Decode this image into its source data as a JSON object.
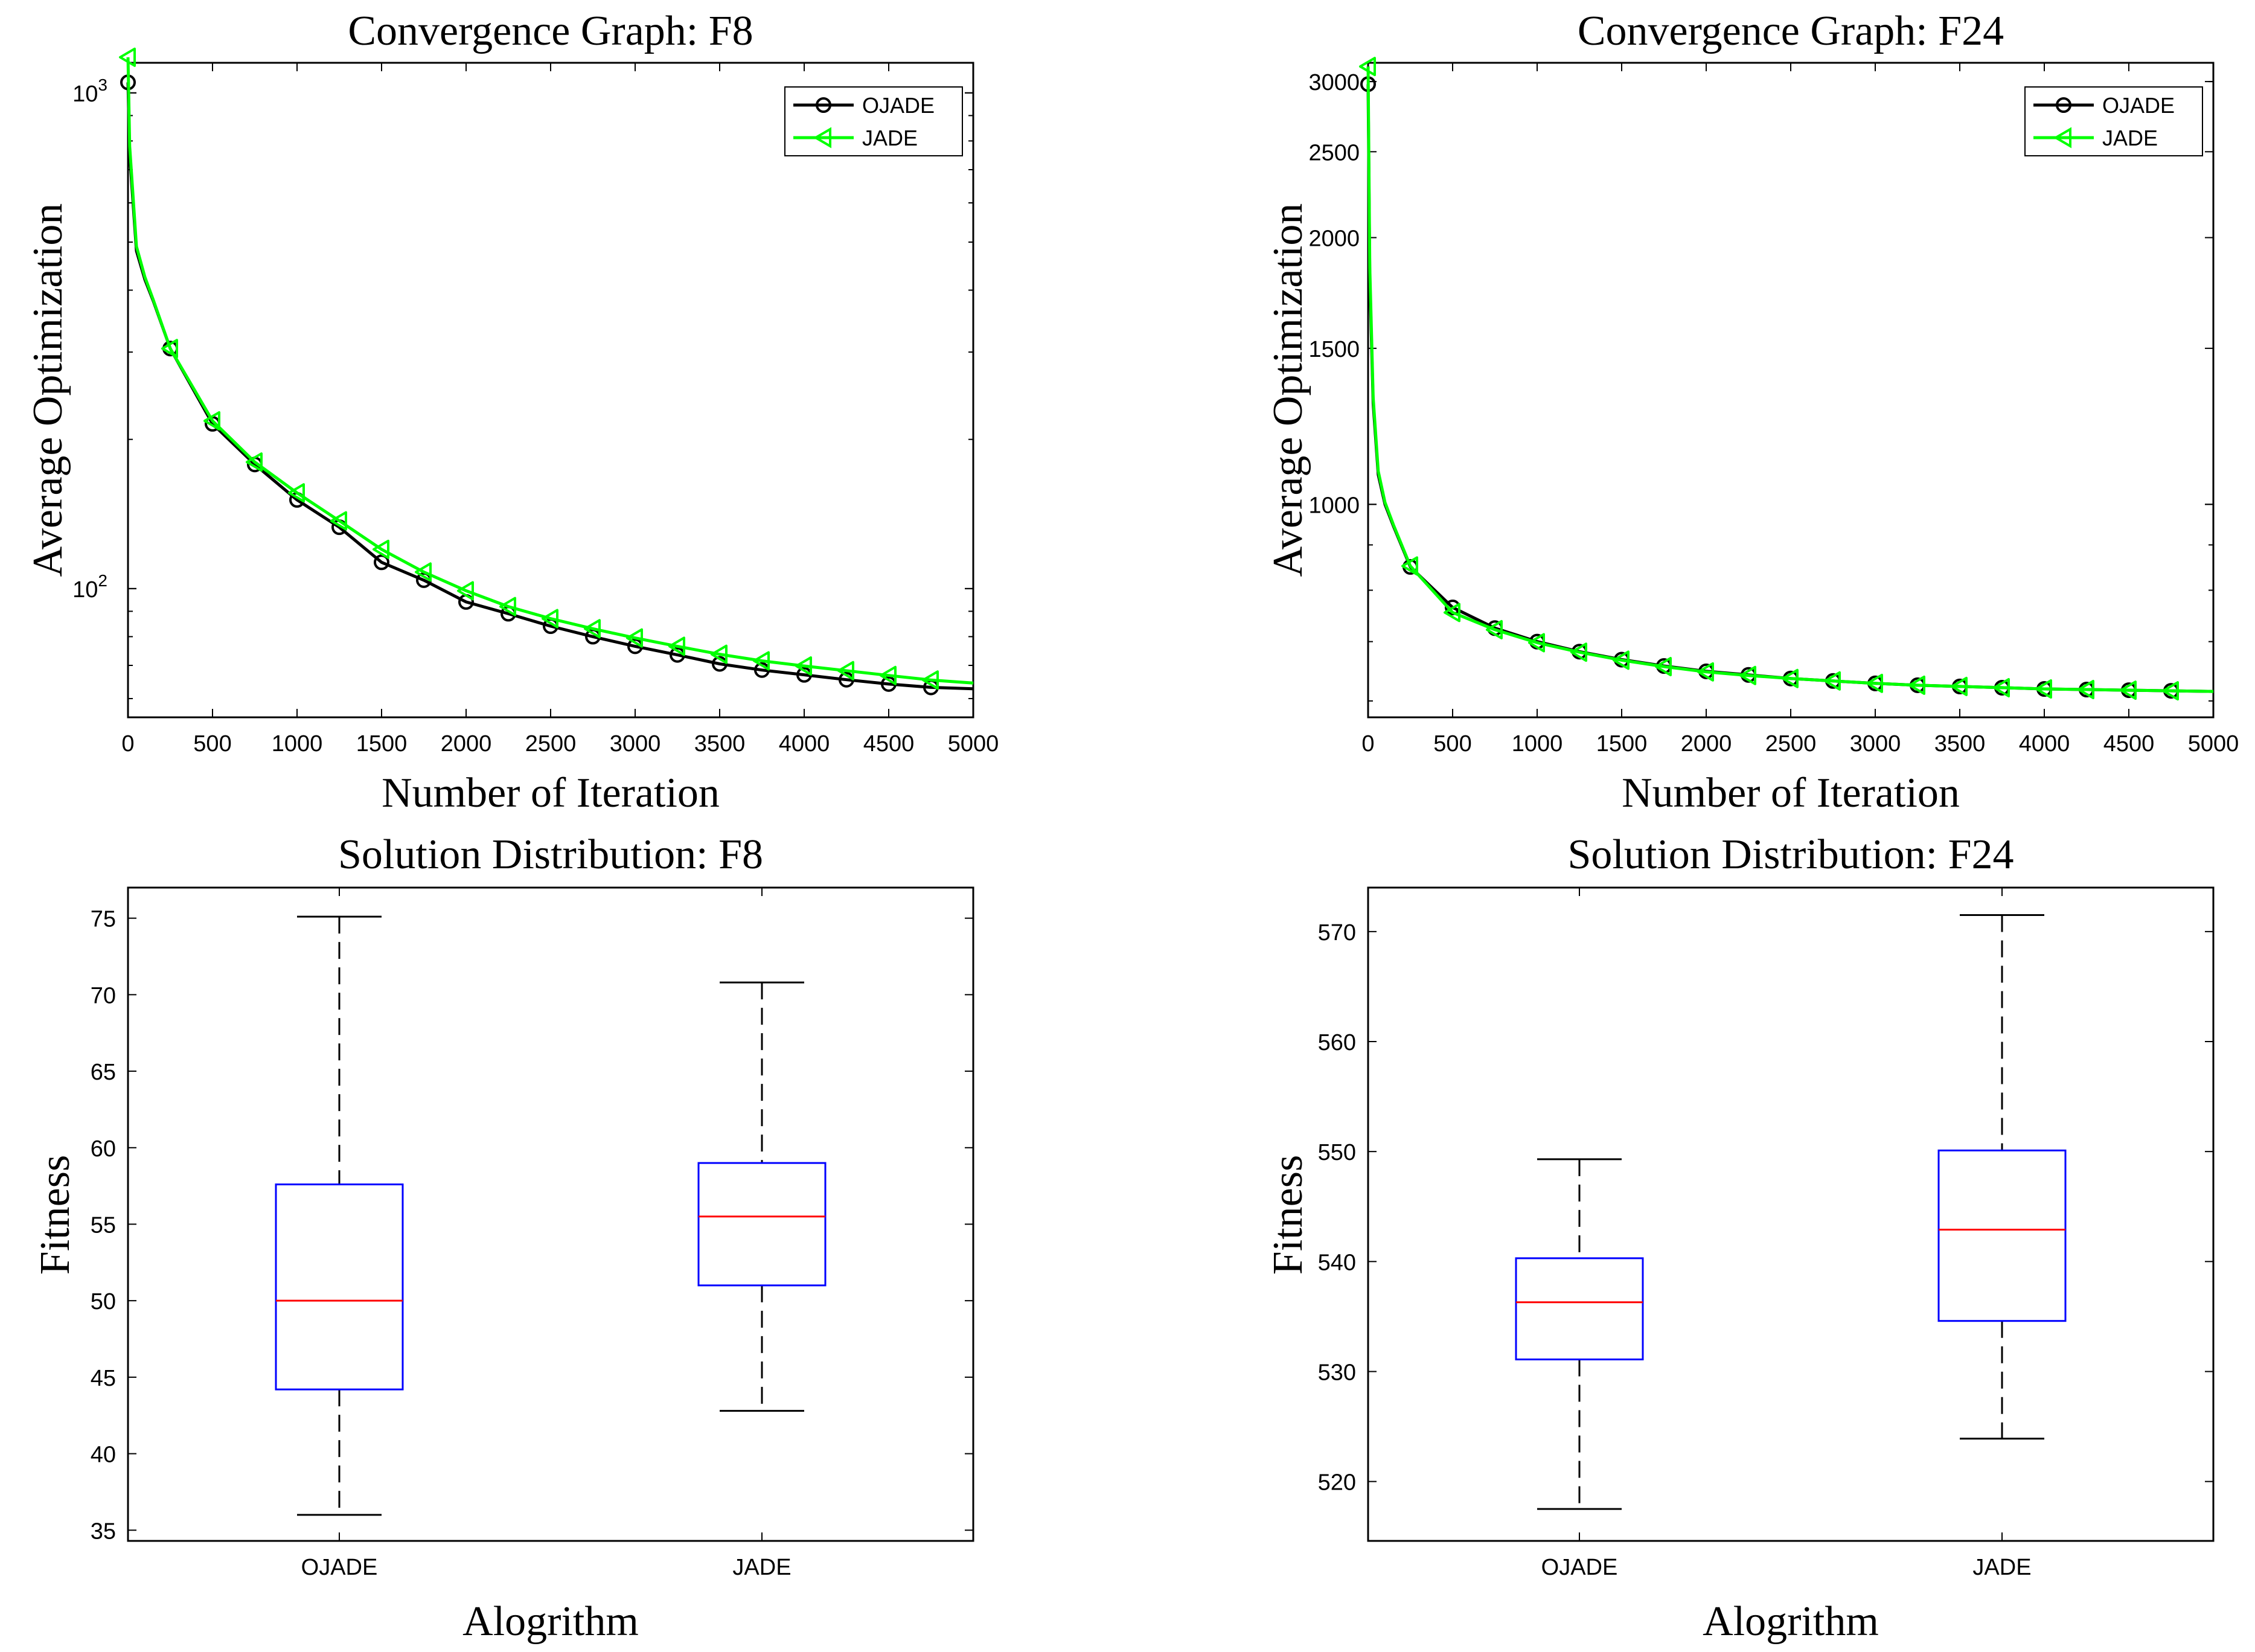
{
  "chart_data": [
    {
      "id": "conv-f8",
      "type": "line",
      "title": "Convergence Graph: F8",
      "xlabel": "Number of Iteration",
      "ylabel": "Average Optimization",
      "yscale": "log",
      "xlim": [
        0,
        5000
      ],
      "ylim": [
        55,
        1150
      ],
      "xticks": [
        0,
        500,
        1000,
        1500,
        2000,
        2500,
        3000,
        3500,
        4000,
        4500,
        5000
      ],
      "xtick_labels": [
        "0",
        "500",
        "1000",
        "1500",
        "2000",
        "2500",
        "3000",
        "3500",
        "4000",
        "4500",
        "5000"
      ],
      "ytick_labels": [
        {
          "value": 100,
          "base": "10",
          "exp": "2"
        },
        {
          "value": 1000,
          "base": "10",
          "exp": "3"
        }
      ],
      "legend": {
        "position": "top-right",
        "entries": [
          "OJADE",
          "JADE"
        ]
      },
      "series": [
        {
          "name": "OJADE",
          "color": "#000000",
          "marker": "circle",
          "x": [
            0,
            10,
            50,
            100,
            150,
            250,
            500,
            750,
            1000,
            1250,
            1500,
            1750,
            2000,
            2250,
            2500,
            2750,
            3000,
            3250,
            3500,
            3750,
            4000,
            4250,
            4500,
            4750,
            5000
          ],
          "y": [
            1050,
            750,
            480,
            420,
            380,
            305,
            215,
            178,
            151,
            133,
            113,
            104,
            94,
            89,
            84,
            80,
            76.5,
            73.5,
            70.5,
            68.5,
            67,
            65.5,
            64.2,
            63.2,
            62.8
          ],
          "marker_x": [
            0,
            250,
            500,
            750,
            1000,
            1250,
            1500,
            1750,
            2000,
            2250,
            2500,
            2750,
            3000,
            3250,
            3500,
            3750,
            4000,
            4250,
            4500,
            4750
          ]
        },
        {
          "name": "JADE",
          "color": "#00ff00",
          "marker": "triangle-left",
          "x": [
            0,
            10,
            50,
            100,
            150,
            250,
            500,
            750,
            1000,
            1250,
            1500,
            1750,
            2000,
            2250,
            2500,
            2750,
            3000,
            3250,
            3500,
            3750,
            4000,
            4250,
            4500,
            4750,
            5000
          ],
          "y": [
            1180,
            780,
            490,
            425,
            382,
            305,
            218,
            180,
            156,
            137,
            120,
            108,
            99,
            92,
            87,
            83,
            79.5,
            76.5,
            73.7,
            71.5,
            69.8,
            68.3,
            66.8,
            65.4,
            64.5
          ],
          "marker_x": [
            0,
            250,
            500,
            750,
            1000,
            1250,
            1500,
            1750,
            2000,
            2250,
            2500,
            2750,
            3000,
            3250,
            3500,
            3750,
            4000,
            4250,
            4500,
            4750
          ]
        }
      ]
    },
    {
      "id": "conv-f24",
      "type": "line",
      "title": "Convergence Graph: F24",
      "xlabel": "Number of Iteration",
      "ylabel": "Average Optimization",
      "yscale": "log",
      "xlim": [
        0,
        5000
      ],
      "ylim": [
        575,
        3150
      ],
      "xticks": [
        0,
        500,
        1000,
        1500,
        2000,
        2500,
        3000,
        3500,
        4000,
        4500,
        5000
      ],
      "xtick_labels": [
        "0",
        "500",
        "1000",
        "1500",
        "2000",
        "2500",
        "3000",
        "3500",
        "4000",
        "4500",
        "5000"
      ],
      "ytick_labels": [
        {
          "value": 1000,
          "text": "1000"
        },
        {
          "value": 1500,
          "text": "1500"
        },
        {
          "value": 2000,
          "text": "2000"
        },
        {
          "value": 2500,
          "text": "2500"
        },
        {
          "value": 3000,
          "text": "3000"
        }
      ],
      "legend": {
        "position": "top-right",
        "entries": [
          "OJADE",
          "JADE"
        ]
      },
      "series": [
        {
          "name": "OJADE",
          "color": "#000000",
          "marker": "circle",
          "x": [
            0,
            10,
            30,
            60,
            100,
            150,
            250,
            500,
            750,
            1000,
            1250,
            1500,
            1750,
            2000,
            2250,
            2500,
            2750,
            3000,
            3250,
            3500,
            3750,
            4000,
            4250,
            4500,
            4750,
            5000
          ],
          "y": [
            2980,
            1800,
            1300,
            1080,
            1000,
            945,
            850,
            765,
            725,
            700,
            682,
            668,
            657,
            648,
            642,
            636,
            632,
            628,
            625,
            623,
            621,
            619,
            618,
            617,
            616,
            615
          ],
          "marker_x": [
            0,
            250,
            500,
            750,
            1000,
            1250,
            1500,
            1750,
            2000,
            2250,
            2500,
            2750,
            3000,
            3250,
            3500,
            3750,
            4000,
            4250,
            4500,
            4750
          ]
        },
        {
          "name": "JADE",
          "color": "#00ff00",
          "marker": "triangle-left",
          "x": [
            0,
            10,
            30,
            60,
            100,
            150,
            250,
            500,
            750,
            1000,
            1250,
            1500,
            1750,
            2000,
            2250,
            2500,
            2750,
            3000,
            3250,
            3500,
            3750,
            4000,
            4250,
            4500,
            4750,
            5000
          ],
          "y": [
            3120,
            1850,
            1320,
            1090,
            1005,
            948,
            852,
            755,
            722,
            698,
            681,
            667,
            656,
            647,
            641,
            636,
            632,
            628,
            625,
            623,
            621,
            619,
            618,
            617,
            616,
            615
          ],
          "marker_x": [
            0,
            250,
            500,
            750,
            1000,
            1250,
            1500,
            1750,
            2000,
            2250,
            2500,
            2750,
            3000,
            3250,
            3500,
            3750,
            4000,
            4250,
            4500,
            4750
          ]
        }
      ]
    },
    {
      "id": "box-f8",
      "type": "box",
      "title": "Solution Distribution: F8",
      "xlabel": "Alogrithm",
      "ylabel": "Fitness",
      "ylim": [
        34.3,
        77
      ],
      "yticks": [
        35,
        40,
        45,
        50,
        55,
        60,
        65,
        70,
        75
      ],
      "ytick_labels": [
        "35",
        "40",
        "45",
        "50",
        "55",
        "60",
        "65",
        "70",
        "75"
      ],
      "categories": [
        "OJADE",
        "JADE"
      ],
      "boxes": [
        {
          "name": "OJADE",
          "min": 36,
          "q1": 44.2,
          "median": 50,
          "q3": 57.6,
          "max": 75.1
        },
        {
          "name": "JADE",
          "min": 42.8,
          "q1": 51,
          "median": 55.5,
          "q3": 59,
          "max": 70.8
        }
      ]
    },
    {
      "id": "box-f24",
      "type": "box",
      "title": "Solution Distribution: F24",
      "xlabel": "Alogrithm",
      "ylabel": "Fitness",
      "ylim": [
        514.6,
        574
      ],
      "yticks": [
        520,
        530,
        540,
        550,
        560,
        570
      ],
      "ytick_labels": [
        "520",
        "530",
        "540",
        "550",
        "560",
        "570"
      ],
      "categories": [
        "OJADE",
        "JADE"
      ],
      "boxes": [
        {
          "name": "OJADE",
          "min": 517.5,
          "q1": 531.1,
          "median": 536.3,
          "q3": 540.3,
          "max": 549.3
        },
        {
          "name": "JADE",
          "min": 523.9,
          "q1": 534.6,
          "median": 542.9,
          "q3": 550.1,
          "max": 571.5
        }
      ]
    }
  ],
  "colors": {
    "axis": "#000000",
    "ojade": "#000000",
    "jade": "#00ff00",
    "box": "#0000ff",
    "median": "#ff0000",
    "whisker": "#000000"
  }
}
